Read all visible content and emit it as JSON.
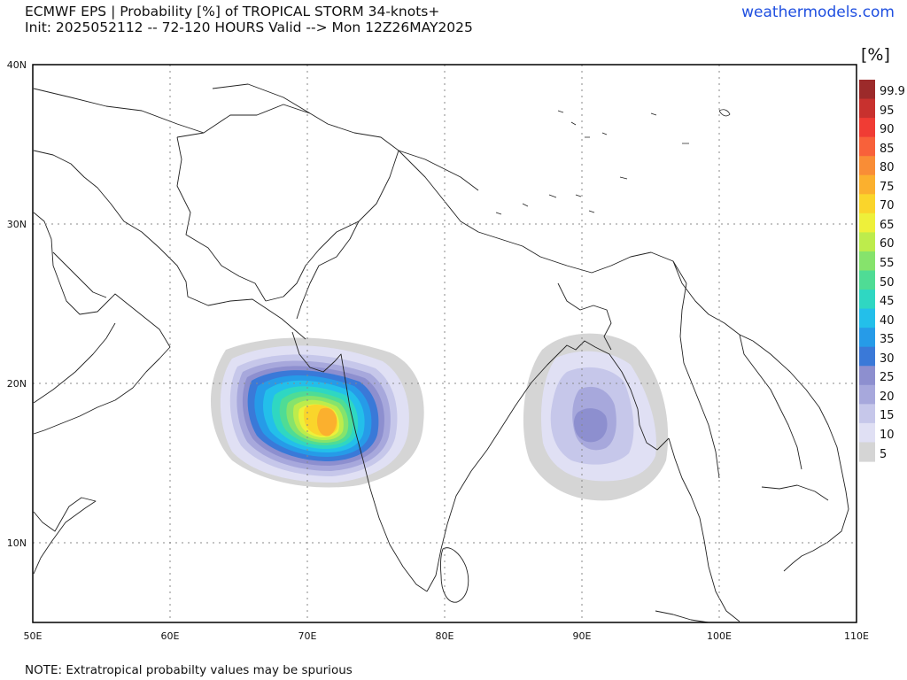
{
  "header": {
    "title_line1": "ECMWF EPS | Probability [%] of TROPICAL STORM 34-knots+",
    "title_line2": "Init: 2025052112 -- 72-120 HOURS Valid --> Mon 12Z26MAY2025",
    "site": "weathermodels.com"
  },
  "footer": {
    "note": "NOTE: Extratropical probabilty values may be spurious"
  },
  "axes": {
    "x_ticks": [
      "50E",
      "60E",
      "70E",
      "80E",
      "90E",
      "100E",
      "110E"
    ],
    "y_ticks": [
      "40N",
      "30N",
      "20N",
      "10N"
    ]
  },
  "colorbar": {
    "title": "[%]",
    "labels": [
      "99.9",
      "95",
      "90",
      "85",
      "80",
      "75",
      "70",
      "65",
      "60",
      "55",
      "50",
      "45",
      "40",
      "35",
      "30",
      "25",
      "20",
      "15",
      "10",
      "5"
    ],
    "colors": [
      "#9c2a2a",
      "#c8312e",
      "#f03c34",
      "#f8613a",
      "#f98d36",
      "#fbb02e",
      "#fad52b",
      "#eef03a",
      "#bdec4c",
      "#86e36c",
      "#4fdc95",
      "#2fd7c2",
      "#23bfea",
      "#269be8",
      "#3a79d8",
      "#8d8fcf",
      "#a7a8dc",
      "#c6c7ea",
      "#e0e0f4",
      "#d5d5d5"
    ]
  }
}
